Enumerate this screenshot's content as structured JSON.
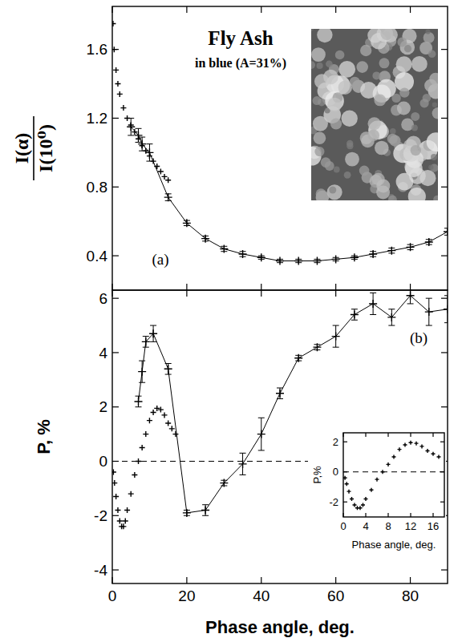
{
  "chart_data": [
    {
      "type": "line",
      "title": "Fly Ash",
      "subtitle": "in blue (A=31%)",
      "ylabel": "I(α)",
      "ylabel_denominator": "I(10⁰)",
      "annotations": [
        "(a)"
      ],
      "xlim": [
        0,
        90
      ],
      "xticks": [
        0,
        20,
        40,
        60,
        80
      ],
      "ylim": [
        0.2,
        1.85
      ],
      "yticks": [
        0.4,
        0.8,
        1.2,
        1.6
      ],
      "tick_labels": "y",
      "color": "#000000",
      "series": [
        {
          "marker": "plus",
          "line_style": "none",
          "x": [
            0.2,
            0.5,
            1,
            1.5,
            2,
            3,
            4,
            5,
            6,
            7,
            8,
            9,
            10,
            11,
            12,
            13,
            14,
            15
          ],
          "values": [
            1.75,
            1.6,
            1.48,
            1.4,
            1.34,
            1.26,
            1.2,
            1.16,
            1.12,
            1.08,
            1.04,
            1.01,
            0.98,
            0.95,
            0.92,
            0.89,
            0.86,
            0.84
          ]
        },
        {
          "marker": "plus",
          "line_style": "solid",
          "x": [
            5,
            7,
            8,
            10,
            15,
            20,
            25,
            30,
            35,
            40,
            45,
            50,
            55,
            60,
            65,
            70,
            75,
            80,
            85,
            90
          ],
          "values": [
            1.15,
            1.1,
            1.05,
            1.0,
            0.74,
            0.59,
            0.5,
            0.44,
            0.41,
            0.39,
            0.37,
            0.37,
            0.37,
            0.38,
            0.39,
            0.41,
            0.43,
            0.45,
            0.48,
            0.54
          ],
          "errors": [
            0.05,
            0.04,
            0.04,
            0.05,
            0.02,
            0.015,
            0.015,
            0.015,
            0.015,
            0.01,
            0.01,
            0.01,
            0.01,
            0.01,
            0.01,
            0.015,
            0.015,
            0.015,
            0.015,
            0.02
          ]
        }
      ]
    },
    {
      "type": "line",
      "xlabel": "Phase angle, deg.",
      "ylabel": "P, %",
      "annotations": [
        "(b)"
      ],
      "xlim": [
        0,
        90
      ],
      "xticks": [
        0,
        20,
        40,
        60,
        80
      ],
      "ylim": [
        -4.5,
        6.3
      ],
      "yticks": [
        -4,
        -2,
        0,
        2,
        4,
        6
      ],
      "color": "#000000",
      "series": [
        {
          "marker": "plus",
          "line_style": "solid",
          "x": [
            7,
            8,
            9,
            11,
            15,
            20,
            25,
            30,
            35,
            40,
            45,
            50,
            55,
            60,
            65,
            70,
            75,
            80,
            85,
            90
          ],
          "values": [
            2.2,
            3.3,
            4.4,
            4.7,
            3.4,
            -1.9,
            -1.8,
            -0.8,
            -0.1,
            1.0,
            2.5,
            3.8,
            4.2,
            4.6,
            5.4,
            5.8,
            5.3,
            6.1,
            5.5,
            5.6
          ],
          "errors": [
            0.2,
            0.4,
            0.2,
            0.3,
            0.2,
            0.1,
            0.2,
            0.1,
            0.4,
            0.6,
            0.2,
            0.1,
            0.1,
            0.4,
            0.2,
            0.4,
            0.3,
            0.3,
            0.5,
            0.5
          ]
        },
        {
          "marker": "plus",
          "line_style": "none",
          "x": [
            0.3,
            0.6,
            1,
            1.5,
            2,
            2.5,
            3,
            3.5,
            4,
            5,
            6,
            7,
            8,
            9,
            10,
            11,
            12,
            13,
            14,
            15,
            16,
            17
          ],
          "values": [
            -0.4,
            -0.8,
            -1.3,
            -1.8,
            -2.2,
            -2.4,
            -2.4,
            -2.2,
            -1.8,
            -1.2,
            -0.5,
            0.0,
            0.5,
            1.0,
            1.5,
            1.8,
            1.95,
            1.9,
            1.7,
            1.4,
            1.2,
            1.0
          ]
        }
      ]
    },
    {
      "type": "line",
      "xlabel": "Phase angle, deg.",
      "ylabel": "P,%",
      "xlim": [
        0,
        18
      ],
      "xticks": [
        0,
        4,
        8,
        12,
        16
      ],
      "ylim": [
        -3,
        2.6
      ],
      "yticks": [
        -2,
        0,
        2
      ],
      "color": "#000000",
      "series": [
        {
          "marker": "plus",
          "line_style": "none",
          "x": [
            0.3,
            0.6,
            1,
            1.5,
            2,
            2.5,
            3,
            3.5,
            4,
            5,
            6,
            7,
            8,
            9,
            10,
            11,
            12,
            13,
            14,
            15,
            16,
            17
          ],
          "values": [
            -0.4,
            -0.8,
            -1.3,
            -1.8,
            -2.2,
            -2.4,
            -2.4,
            -2.2,
            -1.8,
            -1.2,
            -0.5,
            0.0,
            0.5,
            1.0,
            1.5,
            1.8,
            1.95,
            1.9,
            1.7,
            1.4,
            1.2,
            1.0
          ]
        }
      ]
    }
  ]
}
